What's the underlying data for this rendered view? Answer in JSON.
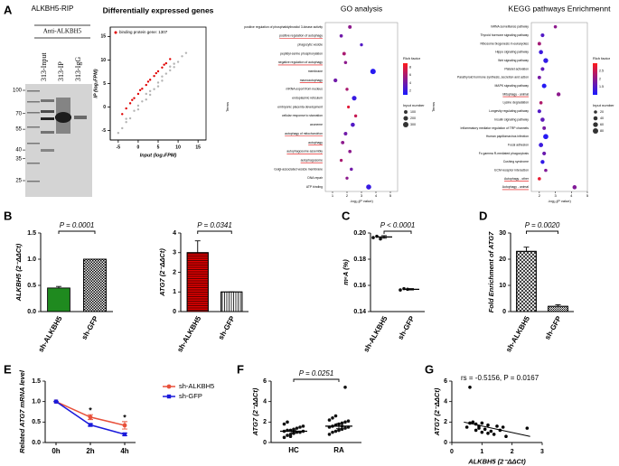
{
  "chart_data": [
    {
      "type": "blot",
      "label": "A",
      "title": "ALKBH5-RIP",
      "antibody": "Anti-ALKBH5",
      "lanes": [
        "313-Input",
        "313-IP",
        "313-IgG"
      ],
      "markers": [
        100,
        70,
        55,
        40,
        35,
        25
      ]
    },
    {
      "type": "scatter",
      "box": true,
      "title": "Differentially expressed genes",
      "xlabel": "Input (log₂FPM)",
      "ylabel": "IP (log₂FPM)",
      "xlim": [
        -7,
        17
      ],
      "xticks": [
        -5,
        0,
        5,
        10,
        15
      ],
      "ylim": [
        -7,
        17
      ],
      "yticks": [
        -5,
        0,
        5,
        10,
        15
      ],
      "series": [
        {
          "color": "#b4b4b4",
          "x": [
            -5,
            -4,
            -3,
            -2,
            -1,
            0,
            1,
            2,
            3,
            4,
            5,
            6,
            7,
            8,
            9,
            10,
            11,
            12,
            -3,
            0,
            3,
            6,
            9,
            2,
            5,
            8
          ],
          "y": [
            -5.5,
            -4.5,
            -3.2,
            -2.4,
            -0.8,
            0.3,
            1.2,
            1.6,
            3.4,
            3.8,
            5.2,
            5.6,
            7.1,
            7.8,
            9.2,
            9.6,
            10.8,
            11.5,
            -2.5,
            -0.5,
            2.6,
            6.5,
            8.5,
            2.8,
            4.4,
            8.6
          ]
        },
        {
          "name": "binding protein gene: 1307",
          "color": "#e00000",
          "x": [
            -4,
            -3,
            -2,
            -1,
            0,
            1,
            2,
            3,
            4,
            5,
            6,
            7,
            8,
            -1.5,
            0.5,
            2.5,
            4.5,
            6.5
          ],
          "y": [
            -1.5,
            -0.3,
            0.8,
            1.9,
            2.8,
            3.9,
            4.7,
            5.8,
            6.6,
            7.6,
            8.4,
            9.3,
            10.2,
            1.5,
            3.6,
            5.4,
            7.2,
            9.0
          ]
        }
      ]
    },
    {
      "type": "dotplot",
      "title": "GO analysis",
      "xlabel": "-log₁₀(P value)",
      "ylabel": "Terms",
      "terms": [
        "positive regulation of phosphatidylinositol 3-kinase activity",
        "positive regulation of autophagy",
        "phagocytic vesicle",
        "peptidyl-serine phosphorylation",
        "negative regulation of autophagy",
        "membrane",
        "macroautophagy",
        "mRNA export from nucleus",
        "endoplasmic reticulum",
        "embryonic placenta development",
        "cellular response to starvation",
        "axoneme",
        "autophagy of mitochondrion",
        "autophagy",
        "autophagosome assembly",
        "autophagosome",
        "Golgi-associated vesicle membrane",
        "DNA repair",
        "ATP binding"
      ],
      "x": [
        2.2,
        1.6,
        3.0,
        1.8,
        1.9,
        3.8,
        1.2,
        2.0,
        2.5,
        2.1,
        2.6,
        2.4,
        1.9,
        1.7,
        2.2,
        1.6,
        2.3,
        2.0,
        3.5
      ],
      "size": [
        100,
        80,
        60,
        90,
        70,
        300,
        120,
        60,
        200,
        50,
        60,
        150,
        100,
        90,
        80,
        60,
        70,
        60,
        250
      ],
      "rich": [
        5,
        4,
        3,
        6,
        5,
        1.5,
        4,
        6,
        2,
        8,
        7,
        3,
        4,
        5,
        5,
        6,
        4,
        5,
        2
      ],
      "underlined": [
        false,
        true,
        false,
        false,
        true,
        false,
        true,
        false,
        false,
        false,
        false,
        false,
        true,
        true,
        true,
        true,
        false,
        false,
        false
      ],
      "xlim": [
        0.5,
        5.5
      ],
      "xticks": [
        1,
        2,
        3,
        4,
        5
      ],
      "rich_title": "Rich factor",
      "richlim": [
        1,
        9
      ],
      "rich_ticks": [
        2,
        4,
        6,
        8
      ],
      "colormap": [
        "#1a1aff",
        "#ff1a1a"
      ],
      "size_title": "Input number",
      "size_ticks": [
        100,
        200,
        300
      ]
    },
    {
      "type": "dotplot",
      "title": "KEGG pathways Enrichmennt",
      "xlabel": "-log₁₀(P value)",
      "ylabel": "Terms",
      "terms": [
        "mRNA surveillance pathway",
        "Thyroid hormone signaling pathway",
        "Ribosome biogenesis in eukaryotes",
        "Hippo signaling pathway",
        "Wnt signaling pathway",
        "Platelet activation",
        "Parathyroid hormone synthesis, secretion and action",
        "MAPK signaling pathway",
        "Mitophagy - animal",
        "Lysine degradation",
        "Longevity regulating pathway",
        "Insulin signaling pathway",
        "Inflammatory mediator regulation of TRP channels",
        "Human papillomavirus infection",
        "Focal adhesion",
        "Fc gamma R-mediated phagocytosis",
        "Cushing syndrome",
        "ECM-receptor interaction",
        "Autophagy - other",
        "Autophagy - animal"
      ],
      "x": [
        3.0,
        2.2,
        2.0,
        2.1,
        2.4,
        2.2,
        2.0,
        2.3,
        3.2,
        2.1,
        2.0,
        2.2,
        2.3,
        2.4,
        2.1,
        2.3,
        2.2,
        2.4,
        2.0,
        4.2
      ],
      "size": [
        20,
        30,
        25,
        40,
        60,
        30,
        25,
        50,
        35,
        20,
        30,
        40,
        25,
        70,
        45,
        30,
        35,
        20,
        20,
        40
      ],
      "rich": [
        2,
        1.5,
        2.2,
        1.3,
        1.2,
        1.6,
        1.8,
        1.1,
        2.0,
        2.3,
        1.5,
        1.6,
        1.8,
        1.1,
        1.3,
        1.7,
        1.2,
        1.9,
        2.8,
        1.9
      ],
      "underlined": [
        false,
        false,
        false,
        false,
        false,
        false,
        false,
        false,
        true,
        false,
        false,
        false,
        false,
        false,
        false,
        false,
        false,
        false,
        true,
        true
      ],
      "xlim": [
        1.5,
        5
      ],
      "xticks": [
        2,
        3,
        4,
        5
      ],
      "rich_title": "Rich factor",
      "richlim": [
        1,
        3
      ],
      "rich_ticks": [
        1.5,
        2,
        2.5
      ],
      "colormap": [
        "#1a1aff",
        "#ff1a1a"
      ],
      "size_title": "Input number",
      "size_ticks": [
        20,
        40,
        60,
        80
      ]
    },
    {
      "type": "bar",
      "label": "B",
      "ylabel": "ALKBH5 (2⁻ΔΔCt)",
      "categories": [
        "sh-ALKBH5",
        "sh-GFP"
      ],
      "values": [
        0.45,
        1.0
      ],
      "errors": [
        0.03,
        0
      ],
      "colors": [
        "#1f8a1f",
        "#ffffff"
      ],
      "patterns": [
        "solid",
        "checker"
      ],
      "ylim": [
        0,
        1.5
      ],
      "yticks": [
        {
          "value": 0,
          "label": "0.0"
        },
        0.5,
        {
          "value": 1,
          "label": "1.0"
        },
        1.5
      ],
      "annotation": "P = 0.0001"
    },
    {
      "type": "bar",
      "ylabel": "ATG7 (2⁻ΔΔCt)",
      "categories": [
        "sh-ALKBH5",
        "sh-GFP"
      ],
      "values": [
        3.0,
        1.0
      ],
      "errors": [
        0.6,
        0
      ],
      "colors": [
        "#e00000",
        "#ffffff"
      ],
      "patterns": [
        "hlines",
        "vlines"
      ],
      "ylim": [
        0,
        4
      ],
      "yticks": [
        0,
        1,
        2,
        3,
        4
      ],
      "annotation": "P = 0.0341"
    },
    {
      "type": "dot",
      "label": "C",
      "ylabel": "m⁶A (%)",
      "categories": [
        "sh-ALKBH5",
        "sh-GFP"
      ],
      "values": [
        0.197,
        0.157
      ],
      "errors": [
        0.001,
        0.0005
      ],
      "points": [
        [
          0.1965,
          0.1975,
          0.1955
        ],
        [
          0.1565,
          0.1575,
          0.157
        ]
      ],
      "ylim": [
        0.14,
        0.2
      ],
      "yticks": [
        0.14,
        0.16,
        0.18,
        {
          "value": 0.2,
          "label": "0.20"
        }
      ],
      "annotation": "P < 0.0001"
    },
    {
      "type": "bar",
      "label": "D",
      "ylabel": "Fold Enrichment of ATG7",
      "categories": [
        "sh-ALKBH5",
        "sh-GFP"
      ],
      "values": [
        23,
        2
      ],
      "errors": [
        1.6,
        0.6
      ],
      "colors": [
        "#ffffff",
        "#ffffff"
      ],
      "patterns": [
        "cross",
        "dense"
      ],
      "ylim": [
        0,
        30
      ],
      "yticks": [
        0,
        10,
        20,
        30
      ],
      "annotation": "P = 0.0020"
    },
    {
      "type": "line",
      "label": "E",
      "ylabel": "Related ATG7 mRNA level",
      "categories": [
        "0h",
        "2h",
        "4h"
      ],
      "series": [
        {
          "name": "sh-ALKBH5",
          "color": "#e8503a",
          "marker": "circle",
          "values": [
            1.0,
            0.62,
            0.42
          ],
          "errors": [
            0,
            0.06,
            0.09
          ]
        },
        {
          "name": "sh-GFP",
          "color": "#1a1adb",
          "marker": "square",
          "values": [
            1.0,
            0.43,
            0.2
          ],
          "errors": [
            0,
            0.03,
            0.03
          ]
        }
      ],
      "significance": [
        null,
        "*",
        "*"
      ],
      "ylim": [
        0,
        1.5
      ],
      "yticks": [
        {
          "value": 0,
          "label": "0.0"
        },
        0.5,
        {
          "value": 1,
          "label": "1.0"
        },
        1.5
      ]
    },
    {
      "type": "strip",
      "label": "F",
      "ylabel": "ATG7 (2⁻ΔΔCt)",
      "categories": [
        "HC",
        "RA"
      ],
      "values": [
        1.1,
        1.6
      ],
      "errors": [
        0.12,
        0.25
      ],
      "points": [
        [
          0.5,
          0.7,
          0.8,
          0.9,
          1.0,
          1.0,
          1.1,
          1.1,
          1.2,
          1.2,
          1.3,
          1.4,
          1.5,
          1.6,
          1.8,
          2.0,
          0.6,
          0.9
        ],
        [
          0.8,
          1.0,
          1.1,
          1.2,
          1.3,
          1.4,
          1.5,
          1.5,
          1.6,
          1.7,
          1.8,
          1.9,
          2.0,
          2.1,
          2.2,
          2.4,
          2.6,
          1.2,
          1.6,
          5.4
        ]
      ],
      "ylim": [
        0,
        6
      ],
      "yticks": [
        0,
        2,
        4,
        6
      ],
      "annotation": "P = 0.0251"
    },
    {
      "type": "scatter",
      "label": "G",
      "xlabel": "ALKBH5 (2⁻ΔΔCt)",
      "ylabel": "ATG7 (2⁻ΔΔCt)",
      "annotation": "rs = -0.5156, P = 0.0167",
      "xlim": [
        0,
        3
      ],
      "xticks": [
        0,
        1,
        2,
        3
      ],
      "ylim": [
        0,
        6
      ],
      "yticks": [
        0,
        2,
        4,
        6
      ],
      "series": [
        {
          "color": "#000000",
          "x": [
            0.5,
            0.6,
            0.7,
            0.8,
            0.8,
            0.9,
            1.0,
            1.0,
            1.1,
            1.2,
            1.2,
            1.3,
            1.5,
            1.6,
            1.7,
            1.8,
            2.5,
            0.6,
            0.9,
            1.4
          ],
          "y": [
            1.5,
            5.4,
            2.0,
            1.8,
            1.2,
            1.6,
            1.9,
            1.0,
            1.3,
            1.7,
            0.9,
            1.1,
            1.6,
            1.2,
            1.5,
            0.6,
            1.4,
            1.9,
            1.4,
            0.8
          ]
        }
      ],
      "fit": {
        "x": [
          0.4,
          2.6
        ],
        "y": [
          2.0,
          0.6
        ]
      }
    }
  ]
}
